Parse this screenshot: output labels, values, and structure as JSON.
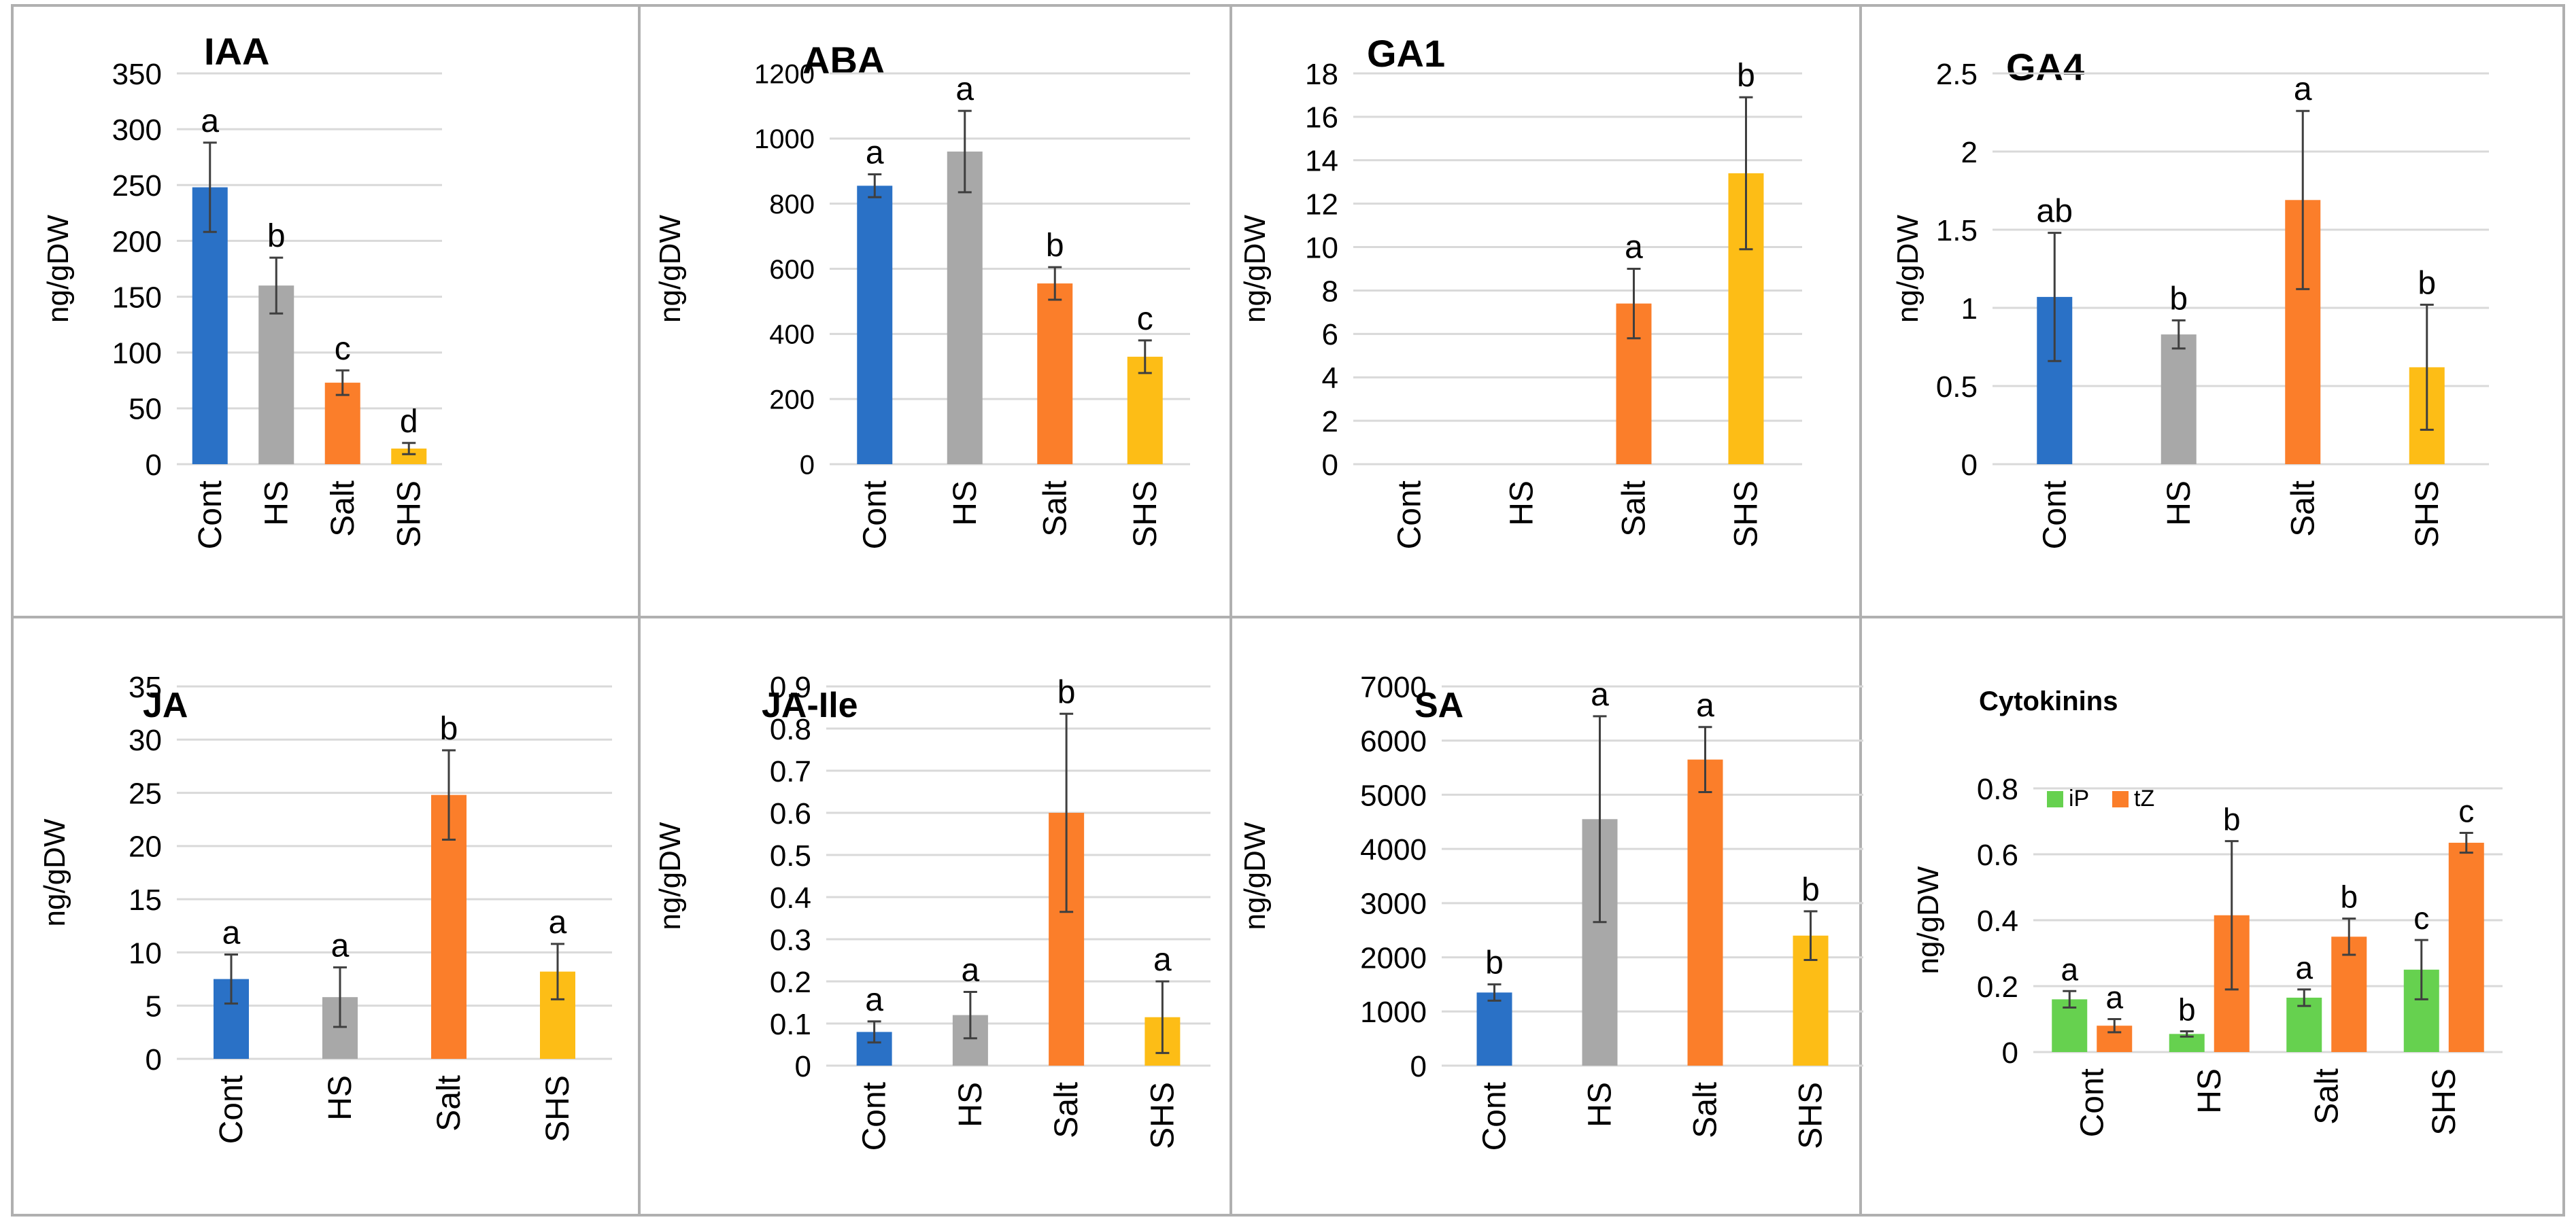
{
  "chart_data": [
    {
      "type": "bar",
      "title": "IAA",
      "ylabel": "ng/gDW",
      "xlabel": "",
      "categories": [
        "Cont",
        "HS",
        "Salt",
        "SHS"
      ],
      "yticks": [
        "0",
        "50",
        "100",
        "150",
        "200",
        "250",
        "300",
        "350"
      ],
      "ylim": [
        0,
        350
      ],
      "grid": true,
      "legend": "none",
      "series": [
        {
          "name": "IAA",
          "values": [
            248,
            160,
            73,
            14
          ],
          "errors": [
            40,
            25,
            11,
            5
          ],
          "labels": [
            "a",
            "b",
            "c",
            "d"
          ]
        }
      ]
    },
    {
      "type": "bar",
      "title": "ABA",
      "ylabel": "ng/gDW",
      "xlabel": "",
      "categories": [
        "Cont",
        "HS",
        "Salt",
        "SHS"
      ],
      "yticks": [
        "0",
        "200",
        "400",
        "600",
        "800",
        "1000",
        "1200"
      ],
      "ylim": [
        0,
        1200
      ],
      "grid": true,
      "legend": "none",
      "series": [
        {
          "name": "ABA",
          "values": [
            855,
            960,
            555,
            330
          ],
          "errors": [
            35,
            125,
            50,
            50
          ],
          "labels": [
            "a",
            "a",
            "b",
            "c"
          ]
        }
      ]
    },
    {
      "type": "bar",
      "title": "GA1",
      "ylabel": "ng/gDW",
      "xlabel": "",
      "categories": [
        "Cont",
        "HS",
        "Salt",
        "SHS"
      ],
      "yticks": [
        "0",
        "2",
        "4",
        "6",
        "8",
        "10",
        "12",
        "14",
        "16",
        "18"
      ],
      "ylim": [
        0,
        18
      ],
      "grid": true,
      "legend": "none",
      "series": [
        {
          "name": "GA1",
          "values": [
            0,
            0,
            7.4,
            13.4
          ],
          "errors": [
            0,
            0,
            1.6,
            3.5
          ],
          "labels": [
            "",
            "",
            "a",
            "b"
          ]
        }
      ]
    },
    {
      "type": "bar",
      "title": "GA4",
      "ylabel": "ng/gDW",
      "xlabel": "",
      "categories": [
        "Cont",
        "HS",
        "Salt",
        "SHS"
      ],
      "yticks": [
        "0",
        "0.5",
        "1",
        "1.5",
        "2",
        "2.5"
      ],
      "ylim": [
        0,
        2.5
      ],
      "grid": true,
      "legend": "none",
      "series": [
        {
          "name": "GA4",
          "values": [
            1.07,
            0.83,
            1.69,
            0.62
          ],
          "errors": [
            0.41,
            0.09,
            0.57,
            0.4
          ],
          "labels": [
            "ab",
            "b",
            "a",
            "b"
          ]
        }
      ]
    },
    {
      "type": "bar",
      "title": "JA",
      "ylabel": "ng/gDW",
      "xlabel": "",
      "categories": [
        "Cont",
        "HS",
        "Salt",
        "SHS"
      ],
      "yticks": [
        "0",
        "5",
        "10",
        "15",
        "20",
        "25",
        "30",
        "35"
      ],
      "ylim": [
        0,
        35
      ],
      "grid": true,
      "legend": "none",
      "series": [
        {
          "name": "JA",
          "values": [
            7.5,
            5.8,
            24.8,
            8.2
          ],
          "errors": [
            2.3,
            2.8,
            4.2,
            2.6
          ],
          "labels": [
            "a",
            "a",
            "b",
            "a"
          ]
        }
      ]
    },
    {
      "type": "bar",
      "title": "JA-Ile",
      "ylabel": "ng/gDW",
      "xlabel": "",
      "categories": [
        "Cont",
        "HS",
        "Salt",
        "SHS"
      ],
      "yticks": [
        "0",
        "0.1",
        "0.2",
        "0.3",
        "0.4",
        "0.5",
        "0.6",
        "0.7",
        "0.8",
        "0.9"
      ],
      "ylim": [
        0,
        0.9
      ],
      "grid": true,
      "legend": "none",
      "series": [
        {
          "name": "JA-Ile",
          "values": [
            0.08,
            0.12,
            0.6,
            0.115
          ],
          "errors": [
            0.025,
            0.055,
            0.235,
            0.085
          ],
          "labels": [
            "a",
            "a",
            "b",
            "a"
          ]
        }
      ]
    },
    {
      "type": "bar",
      "title": "SA",
      "ylabel": "ng/gDW",
      "xlabel": "",
      "categories": [
        "Cont",
        "HS",
        "Salt",
        "SHS"
      ],
      "yticks": [
        "0",
        "1000",
        "2000",
        "3000",
        "4000",
        "5000",
        "6000",
        "7000"
      ],
      "ylim": [
        0,
        7000
      ],
      "grid": true,
      "legend": "none",
      "series": [
        {
          "name": "SA",
          "values": [
            1350,
            4550,
            5650,
            2400
          ],
          "errors": [
            150,
            1900,
            600,
            450
          ],
          "labels": [
            "b",
            "a",
            "a",
            "b"
          ]
        }
      ]
    },
    {
      "type": "bar",
      "title": "Cytokinins",
      "ylabel": "ng/gDW",
      "xlabel": "",
      "categories": [
        "Cont",
        "HS",
        "Salt",
        "SHS"
      ],
      "yticks": [
        "0",
        "0.2",
        "0.4",
        "0.6",
        "0.8"
      ],
      "ylim": [
        0,
        0.8
      ],
      "grid": true,
      "legend": "top-left",
      "series": [
        {
          "name": "iP",
          "values": [
            0.16,
            0.055,
            0.165,
            0.25
          ],
          "errors": [
            0.025,
            0.008,
            0.025,
            0.09
          ],
          "labels": [
            "a",
            "b",
            "a",
            "c"
          ]
        },
        {
          "name": "tZ",
          "values": [
            0.08,
            0.415,
            0.35,
            0.635
          ],
          "errors": [
            0.02,
            0.225,
            0.055,
            0.03
          ],
          "labels": [
            "a",
            "b",
            "b",
            "c"
          ]
        }
      ]
    }
  ],
  "colors": {
    "single": [
      "#2a71c6",
      "#a8a8a8",
      "#fb7e2a",
      "#fdbd16"
    ],
    "iP": "#66d14f",
    "tZ": "#fb7e2a",
    "grid": "#d9d9d9",
    "error": "#3f3f3f",
    "text": "#000000",
    "frame": "#b0b0b0"
  }
}
